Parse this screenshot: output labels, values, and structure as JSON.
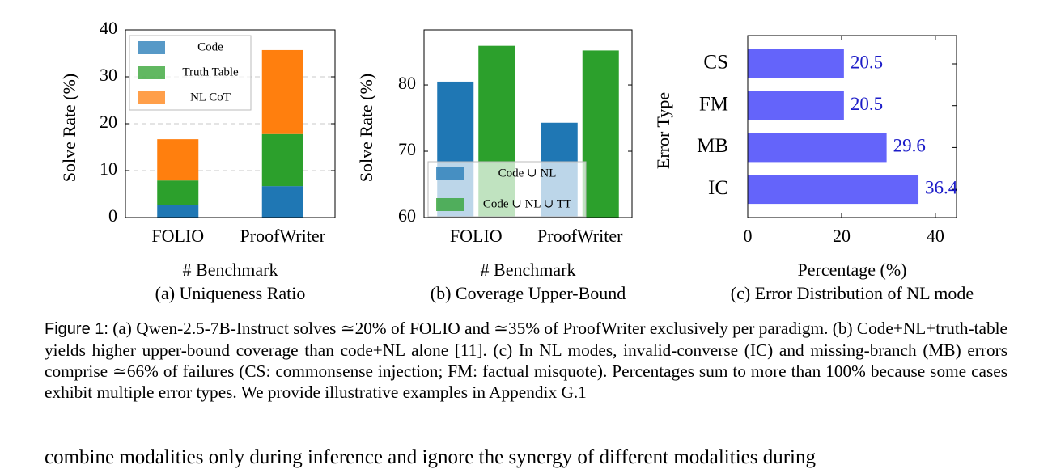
{
  "chart_data": [
    {
      "type": "bar",
      "stacked": true,
      "categories": [
        "FOLIO",
        "ProofWriter"
      ],
      "series": [
        {
          "name": "Code",
          "color": "#1f77b4",
          "values": [
            2.6,
            6.7
          ]
        },
        {
          "name": "Truth Table",
          "color": "#2ca02c",
          "values": [
            5.3,
            11.1
          ]
        },
        {
          "name": "NL CoT",
          "color": "#ff7f0e",
          "values": [
            8.8,
            17.9
          ]
        }
      ],
      "ylim": [
        0,
        40
      ],
      "yticks": [
        0,
        10,
        20,
        30,
        40
      ],
      "grid": true,
      "legend": "top-left",
      "y_label": "Solve Rate (%)",
      "x_label": "# Benchmark",
      "subtitle": "(a) Uniqueness Ratio"
    },
    {
      "type": "bar",
      "stacked": false,
      "categories": [
        "FOLIO",
        "ProofWriter"
      ],
      "series": [
        {
          "name": "Code ∪ NL",
          "color": "#1f77b4",
          "values": [
            80.5,
            74.3
          ]
        },
        {
          "name": "Code ∪ NL ∪ TT",
          "color": "#2ca02c",
          "values": [
            85.9,
            85.2
          ]
        }
      ],
      "ylim": [
        60,
        88.3
      ],
      "yticks": [
        60,
        70,
        80
      ],
      "grid": false,
      "legend": "bottom-left",
      "y_label": "Solve Rate (%)",
      "x_label": "# Benchmark",
      "subtitle": "(b) Coverage Upper-Bound"
    },
    {
      "type": "bar",
      "orientation": "horizontal",
      "categories": [
        "CS",
        "FM",
        "MB",
        "IC"
      ],
      "values": [
        20.5,
        20.5,
        29.6,
        36.4
      ],
      "color": "#6464fa",
      "xlim": [
        0,
        44.5
      ],
      "xticks": [
        0,
        20,
        40
      ],
      "grid": false,
      "y_label": "Error Type",
      "x_label": "Percentage (%)",
      "subtitle": "(c) Error Distribution of NL mode"
    }
  ],
  "caption": {
    "label": "Figure 1:",
    "text": "(a) Qwen-2.5-7B-Instruct solves ≃20% of FOLIO and ≃35% of ProofWriter exclusively per paradigm. (b) Code+NL+truth-table yields higher upper-bound coverage than code+NL alone [11]. (c) In NL modes, invalid-converse (IC) and missing-branch (MB) errors comprise ≃66% of failures (CS: commonsense injection; FM: factual misquote). Percentages sum to more than 100% because some cases exhibit multiple error types. We provide illustrative examples in Appendix G.1"
  },
  "body_text": "combine modalities only during inference and ignore the synergy of different modalities during"
}
